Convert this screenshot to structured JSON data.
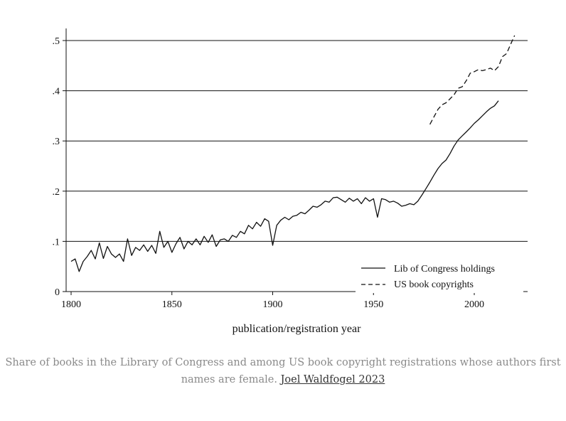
{
  "chart_data": {
    "type": "line",
    "xlabel": "publication/registration year",
    "ylabel": "",
    "xlim": [
      1800,
      2023
    ],
    "ylim": [
      0,
      0.5
    ],
    "xticks": [
      1800,
      1850,
      1900,
      1950,
      2000
    ],
    "xtick_labels": [
      "1800",
      "1850",
      "1900",
      "1950",
      "2000"
    ],
    "yticks": [
      0,
      0.1,
      0.2,
      0.3,
      0.4,
      0.5
    ],
    "ytick_labels": [
      "0",
      ".1",
      ".2",
      ".3",
      ".4",
      ".5"
    ],
    "grid": "horizontal",
    "legend_position": "bottom-right",
    "series": [
      {
        "name": "Lib of Congress holdings",
        "style": "solid",
        "x": [
          1800,
          1802,
          1804,
          1806,
          1808,
          1810,
          1812,
          1814,
          1816,
          1818,
          1820,
          1822,
          1824,
          1826,
          1828,
          1830,
          1832,
          1834,
          1836,
          1838,
          1840,
          1842,
          1844,
          1846,
          1848,
          1850,
          1852,
          1854,
          1856,
          1858,
          1860,
          1862,
          1864,
          1866,
          1868,
          1870,
          1872,
          1874,
          1876,
          1878,
          1880,
          1882,
          1884,
          1886,
          1888,
          1890,
          1892,
          1894,
          1896,
          1898,
          1900,
          1902,
          1904,
          1906,
          1908,
          1910,
          1912,
          1914,
          1916,
          1918,
          1920,
          1922,
          1924,
          1926,
          1928,
          1930,
          1932,
          1934,
          1936,
          1938,
          1940,
          1942,
          1944,
          1946,
          1948,
          1950,
          1952,
          1954,
          1956,
          1958,
          1960,
          1962,
          1964,
          1966,
          1968,
          1970,
          1972,
          1974,
          1976,
          1978,
          1980,
          1982,
          1984,
          1986,
          1988,
          1990,
          1992,
          1994,
          1996,
          1998,
          2000,
          2002,
          2004,
          2006,
          2008,
          2010,
          2012
        ],
        "values": [
          0.06,
          0.065,
          0.04,
          0.06,
          0.07,
          0.082,
          0.065,
          0.097,
          0.066,
          0.09,
          0.075,
          0.068,
          0.075,
          0.06,
          0.105,
          0.072,
          0.088,
          0.082,
          0.093,
          0.08,
          0.092,
          0.076,
          0.12,
          0.088,
          0.1,
          0.078,
          0.095,
          0.108,
          0.085,
          0.1,
          0.093,
          0.105,
          0.093,
          0.11,
          0.098,
          0.113,
          0.09,
          0.103,
          0.105,
          0.1,
          0.112,
          0.108,
          0.12,
          0.115,
          0.132,
          0.125,
          0.138,
          0.13,
          0.145,
          0.14,
          0.092,
          0.132,
          0.142,
          0.148,
          0.143,
          0.15,
          0.152,
          0.158,
          0.155,
          0.162,
          0.17,
          0.168,
          0.173,
          0.18,
          0.178,
          0.187,
          0.188,
          0.183,
          0.178,
          0.186,
          0.18,
          0.185,
          0.175,
          0.187,
          0.18,
          0.185,
          0.148,
          0.185,
          0.183,
          0.178,
          0.18,
          0.176,
          0.17,
          0.172,
          0.175,
          0.173,
          0.18,
          0.192,
          0.205,
          0.218,
          0.232,
          0.245,
          0.255,
          0.262,
          0.275,
          0.29,
          0.302,
          0.31,
          0.318,
          0.326,
          0.335,
          0.342,
          0.35,
          0.358,
          0.365,
          0.37,
          0.38
        ]
      },
      {
        "name": "US book copyrights",
        "style": "dashed",
        "x": [
          1978,
          1980,
          1982,
          1984,
          1986,
          1988,
          1990,
          1992,
          1994,
          1996,
          1998,
          2000,
          2002,
          2004,
          2006,
          2008,
          2010,
          2012,
          2014,
          2016,
          2018,
          2020
        ],
        "values": [
          0.333,
          0.348,
          0.363,
          0.372,
          0.376,
          0.384,
          0.392,
          0.405,
          0.408,
          0.42,
          0.435,
          0.438,
          0.442,
          0.44,
          0.442,
          0.445,
          0.44,
          0.448,
          0.468,
          0.474,
          0.492,
          0.51
        ]
      }
    ]
  },
  "caption": {
    "text": "Share of books in the Library of Congress and among US book copyright registrations whose authors first names are female.",
    "link": "Joel Waldfogel 2023"
  }
}
